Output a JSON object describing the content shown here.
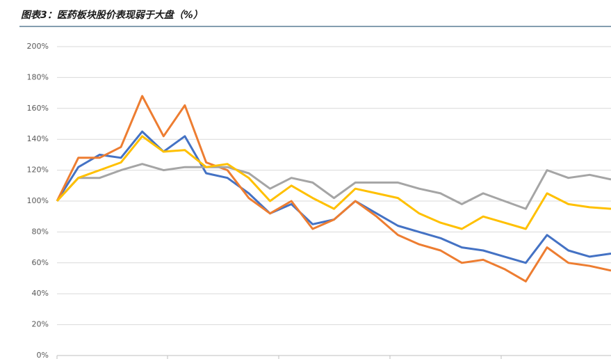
{
  "chart_data": {
    "type": "line",
    "title": "图表3：医药板块股价表现弱于大盘（%）",
    "series": [
      {
        "color": "#4472c4",
        "values": [
          100,
          122,
          130,
          128,
          145,
          132,
          142,
          118,
          115,
          105,
          92,
          98,
          85,
          88,
          100,
          92,
          84,
          80,
          76,
          70,
          68,
          64,
          60,
          78,
          68,
          64,
          66
        ]
      },
      {
        "color": "#ed7d31",
        "values": [
          100,
          128,
          128,
          135,
          168,
          142,
          162,
          125,
          120,
          102,
          92,
          100,
          82,
          88,
          100,
          90,
          78,
          72,
          68,
          60,
          62,
          56,
          48,
          70,
          60,
          58,
          55
        ]
      },
      {
        "color": "#a5a5a5",
        "values": [
          100,
          115,
          115,
          120,
          124,
          120,
          122,
          122,
          122,
          118,
          108,
          115,
          112,
          102,
          112,
          112,
          112,
          108,
          105,
          98,
          105,
          100,
          95,
          120,
          115,
          117,
          114
        ]
      },
      {
        "color": "#ffc000",
        "values": [
          100,
          115,
          120,
          125,
          142,
          132,
          133,
          122,
          124,
          115,
          100,
          110,
          102,
          95,
          108,
          105,
          102,
          92,
          86,
          82,
          90,
          86,
          82,
          105,
          98,
          96,
          95
        ]
      }
    ],
    "ylim": [
      0,
      200
    ],
    "yticks": [
      {
        "value": 0,
        "label": "0%"
      },
      {
        "value": 20,
        "label": "20%"
      },
      {
        "value": 40,
        "label": "40%"
      },
      {
        "value": 60,
        "label": "60%"
      },
      {
        "value": 80,
        "label": "80%"
      },
      {
        "value": 100,
        "label": "100%"
      },
      {
        "value": 120,
        "label": "120%"
      },
      {
        "value": 140,
        "label": "140%"
      },
      {
        "value": 160,
        "label": "160%"
      },
      {
        "value": 180,
        "label": "180%"
      },
      {
        "value": 200,
        "label": "200%"
      }
    ],
    "grid": true
  }
}
